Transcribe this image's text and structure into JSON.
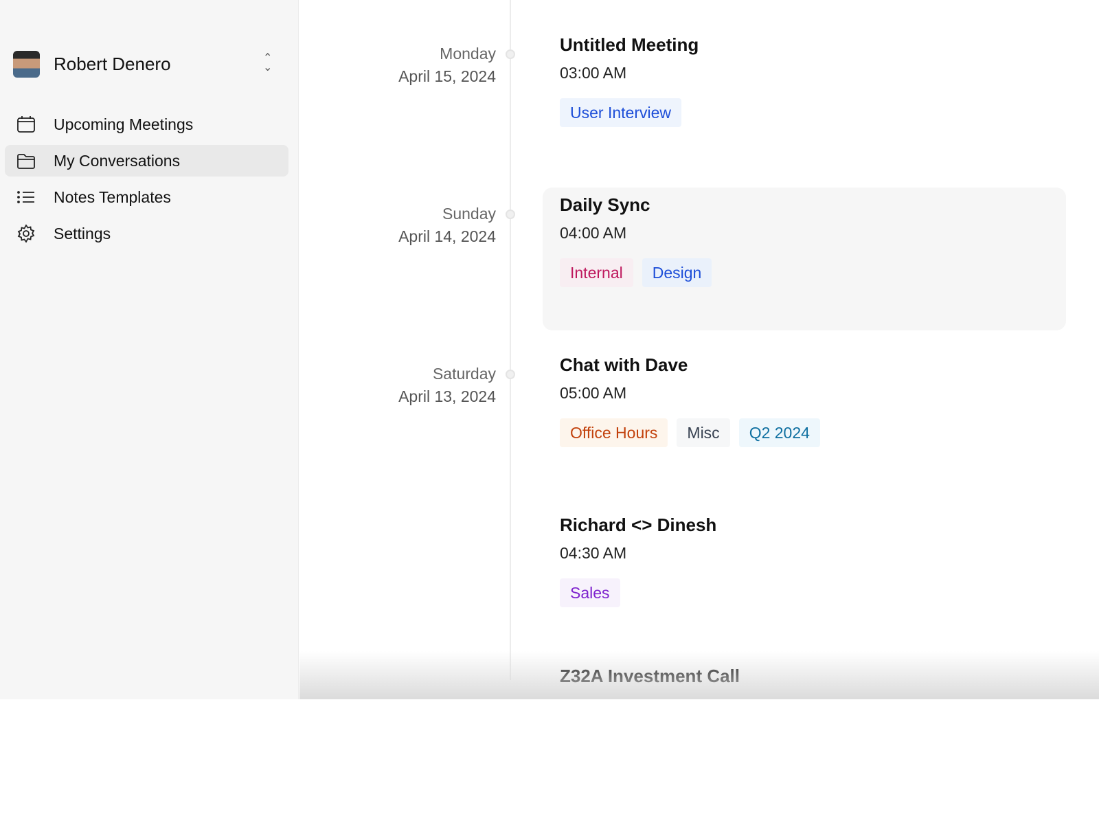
{
  "user": {
    "name": "Robert Denero"
  },
  "nav": [
    {
      "label": "Upcoming Meetings",
      "icon": "calendar-icon"
    },
    {
      "label": "My Conversations",
      "icon": "folder-icon",
      "active": true
    },
    {
      "label": "Notes Templates",
      "icon": "list-icon"
    },
    {
      "label": "Settings",
      "icon": "gear-icon"
    }
  ],
  "meetings": [
    {
      "day": "Monday",
      "date": "April 15, 2024",
      "title": "Untitled Meeting",
      "time": "03:00 AM",
      "tags": [
        {
          "label": "User Interview",
          "color": "#1d4ed8",
          "bg": "#eef4fd"
        }
      ]
    },
    {
      "day": "Sunday",
      "date": "April 14, 2024",
      "title": "Daily Sync",
      "time": "04:00 AM",
      "hovered": true,
      "tags": [
        {
          "label": "Internal",
          "color": "#be185d",
          "bg": "#f8eef2"
        },
        {
          "label": "Design",
          "color": "#1d4ed8",
          "bg": "#eaf1fb"
        }
      ]
    },
    {
      "day": "Saturday",
      "date": "April 13, 2024",
      "title": "Chat with Dave",
      "time": "05:00 AM",
      "tags": [
        {
          "label": "Office Hours",
          "color": "#c2410c",
          "bg": "#fdf5ec"
        },
        {
          "label": "Misc",
          "color": "#374151",
          "bg": "#f6f7f8"
        },
        {
          "label": "Q2 2024",
          "color": "#0e6fa0",
          "bg": "#eef7fc"
        }
      ]
    },
    {
      "day": "",
      "date": "",
      "title": "Richard <> Dinesh",
      "time": "04:30 AM",
      "tags": [
        {
          "label": "Sales",
          "color": "#7e22ce",
          "bg": "#f7f2fc"
        }
      ]
    },
    {
      "day": "",
      "date": "",
      "title": "Z32A Investment Call",
      "time": "",
      "tags": []
    }
  ]
}
